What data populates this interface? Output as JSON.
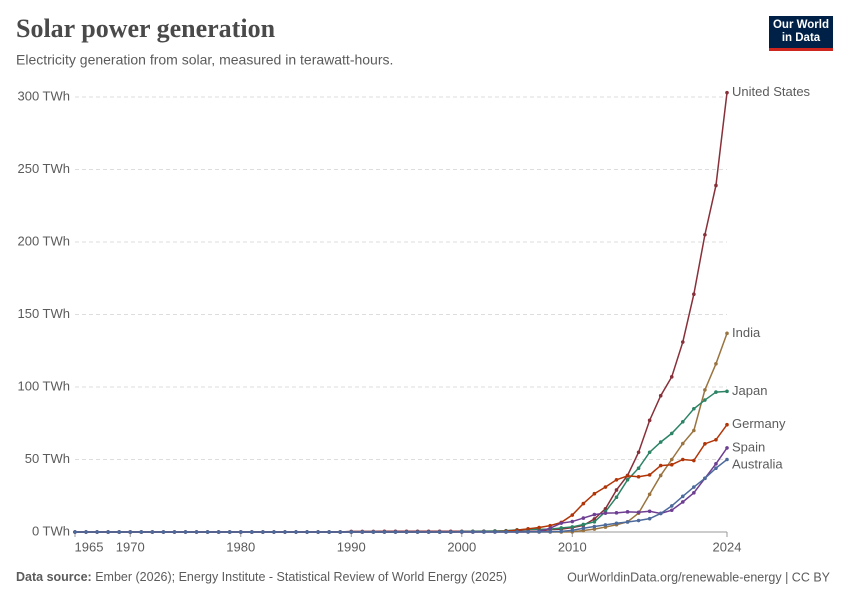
{
  "chart_data": {
    "type": "line",
    "title": "Solar power generation",
    "subtitle": "Electricity generation from solar, measured in terawatt-hours.",
    "logo": "Our World in Data",
    "source_label": "Data source:",
    "source_text": "Ember (2026); Energy Institute - Statistical Review of World Energy (2025)",
    "url_license": "OurWorldinData.org/renewable-energy | CC BY",
    "x": [
      1965,
      1966,
      1967,
      1968,
      1969,
      1970,
      1971,
      1972,
      1973,
      1974,
      1975,
      1976,
      1977,
      1978,
      1979,
      1980,
      1981,
      1982,
      1983,
      1984,
      1985,
      1986,
      1987,
      1988,
      1989,
      1990,
      1991,
      1992,
      1993,
      1994,
      1995,
      1996,
      1997,
      1998,
      1999,
      2000,
      2001,
      2002,
      2003,
      2004,
      2005,
      2006,
      2007,
      2008,
      2009,
      2010,
      2011,
      2012,
      2013,
      2014,
      2015,
      2016,
      2017,
      2018,
      2019,
      2020,
      2021,
      2022,
      2023,
      2024
    ],
    "xlim": [
      1965,
      2024
    ],
    "xticks": [
      1965,
      1970,
      1980,
      1990,
      2000,
      2010,
      2024
    ],
    "ylim": [
      0,
      300
    ],
    "yticks": [
      {
        "value": 0,
        "label": "0 TWh"
      },
      {
        "value": 50,
        "label": "50 TWh"
      },
      {
        "value": 100,
        "label": "100 TWh"
      },
      {
        "value": 150,
        "label": "150 TWh"
      },
      {
        "value": 200,
        "label": "200 TWh"
      },
      {
        "value": 250,
        "label": "250 TWh"
      },
      {
        "value": 300,
        "label": "300 TWh"
      }
    ],
    "grid": true,
    "series": [
      {
        "name": "United States",
        "color": "#883039",
        "values": [
          0,
          0,
          0,
          0,
          0,
          0,
          0,
          0,
          0,
          0,
          0,
          0,
          0,
          0,
          0,
          0,
          0,
          0,
          0,
          0,
          0,
          0,
          0,
          0,
          0,
          0.4,
          0.4,
          0.4,
          0.5,
          0.5,
          0.5,
          0.5,
          0.5,
          0.5,
          0.5,
          0.5,
          0.5,
          0.6,
          0.5,
          0.6,
          0.6,
          0.5,
          0.6,
          1.6,
          2,
          3,
          4.5,
          9,
          16,
          29,
          39,
          55,
          77,
          94,
          107,
          131,
          164,
          205,
          239,
          303
        ]
      },
      {
        "name": "India",
        "color": "#9a7440",
        "values": [
          0,
          0,
          0,
          0,
          0,
          0,
          0,
          0,
          0,
          0,
          0,
          0,
          0,
          0,
          0,
          0,
          0,
          0,
          0,
          0,
          0,
          0,
          0,
          0,
          0,
          0,
          0,
          0,
          0,
          0,
          0,
          0,
          0,
          0,
          0,
          0,
          0,
          0,
          0,
          0,
          0,
          0,
          0,
          0,
          0,
          0.1,
          1,
          2,
          3.4,
          5,
          7,
          13,
          26,
          39,
          50,
          61,
          70,
          98,
          116,
          137
        ]
      },
      {
        "name": "Japan",
        "color": "#2c8465",
        "values": [
          0,
          0,
          0,
          0,
          0,
          0,
          0,
          0,
          0,
          0,
          0,
          0,
          0,
          0,
          0,
          0,
          0,
          0,
          0,
          0,
          0,
          0,
          0,
          0,
          0,
          0,
          0,
          0,
          0,
          0,
          0,
          0,
          0,
          0,
          0,
          0.3,
          0.4,
          0.5,
          0.7,
          0.9,
          1.5,
          1.8,
          1.9,
          2,
          2.8,
          3.5,
          5.2,
          7,
          14,
          24,
          36,
          44,
          55,
          62,
          68,
          76,
          85,
          91,
          96.5,
          97
        ]
      },
      {
        "name": "Germany",
        "color": "#b13507",
        "values": [
          0,
          0,
          0,
          0,
          0,
          0,
          0,
          0,
          0,
          0,
          0,
          0,
          0,
          0,
          0,
          0,
          0,
          0,
          0,
          0,
          0,
          0,
          0,
          0,
          0,
          0,
          0,
          0,
          0,
          0,
          0,
          0,
          0,
          0,
          0,
          0.06,
          0.1,
          0.2,
          0.3,
          0.56,
          1.3,
          2.2,
          3.1,
          4.4,
          6.6,
          11.7,
          19.6,
          26.4,
          31,
          36,
          38.7,
          38.1,
          39.4,
          45.8,
          46.4,
          50,
          49.3,
          60.8,
          63.6,
          74
        ]
      },
      {
        "name": "Spain",
        "color": "#6d3e91",
        "values": [
          0,
          0,
          0,
          0,
          0,
          0,
          0,
          0,
          0,
          0,
          0,
          0,
          0,
          0,
          0,
          0,
          0,
          0,
          0,
          0,
          0,
          0,
          0,
          0,
          0,
          0,
          0,
          0,
          0,
          0,
          0,
          0,
          0,
          0,
          0,
          0,
          0,
          0,
          0,
          0,
          0,
          0.1,
          0.5,
          2.6,
          6.1,
          7.2,
          9.6,
          12,
          13,
          13.2,
          13.9,
          13.6,
          14.3,
          12.8,
          15,
          20.7,
          27,
          37,
          47,
          58
        ]
      },
      {
        "name": "Australia",
        "color": "#4c6a9c",
        "values": [
          0,
          0,
          0,
          0,
          0,
          0,
          0,
          0,
          0,
          0,
          0,
          0,
          0,
          0,
          0,
          0,
          0,
          0,
          0,
          0,
          0,
          0,
          0,
          0,
          0,
          0,
          0,
          0,
          0,
          0,
          0,
          0,
          0,
          0,
          0,
          0.1,
          0.1,
          0.1,
          0.1,
          0.1,
          0.1,
          0.1,
          0.1,
          0.2,
          0.4,
          1.1,
          2.6,
          3.8,
          4.9,
          6,
          6.9,
          7.9,
          9.2,
          12.8,
          18,
          24.6,
          31,
          37,
          44,
          50
        ]
      }
    ]
  }
}
